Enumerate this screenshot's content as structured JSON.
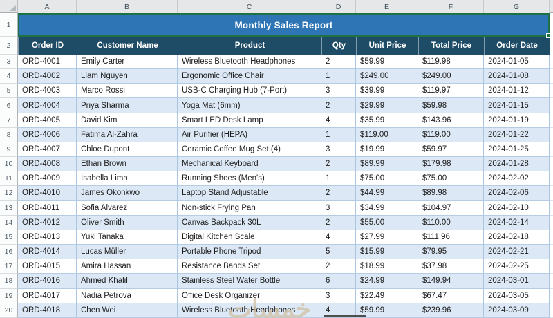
{
  "title": "Monthly Sales Report",
  "column_letters": [
    "A",
    "B",
    "C",
    "D",
    "E",
    "F",
    "G"
  ],
  "row_numbers": [
    "1",
    "2"
  ],
  "table": {
    "headers": [
      "Order ID",
      "Customer Name",
      "Product",
      "Qty",
      "Unit Price",
      "Total Price",
      "Order Date"
    ],
    "rows": [
      {
        "row_num": "3",
        "order_id": "ORD-4001",
        "customer": "Emily Carter",
        "product": "Wireless Bluetooth Headphones",
        "qty": "2",
        "unit_price": "$59.99",
        "total_price": "$119.98",
        "order_date": "2024-01-05"
      },
      {
        "row_num": "4",
        "order_id": "ORD-4002",
        "customer": "Liam Nguyen",
        "product": "Ergonomic Office Chair",
        "qty": "1",
        "unit_price": "$249.00",
        "total_price": "$249.00",
        "order_date": "2024-01-08"
      },
      {
        "row_num": "5",
        "order_id": "ORD-4003",
        "customer": "Marco Rossi",
        "product": "USB-C Charging Hub (7-Port)",
        "qty": "3",
        "unit_price": "$39.99",
        "total_price": "$119.97",
        "order_date": "2024-01-12"
      },
      {
        "row_num": "6",
        "order_id": "ORD-4004",
        "customer": "Priya Sharma",
        "product": "Yoga Mat (6mm)",
        "qty": "2",
        "unit_price": "$29.99",
        "total_price": "$59.98",
        "order_date": "2024-01-15"
      },
      {
        "row_num": "7",
        "order_id": "ORD-4005",
        "customer": "David Kim",
        "product": "Smart LED Desk Lamp",
        "qty": "4",
        "unit_price": "$35.99",
        "total_price": "$143.96",
        "order_date": "2024-01-19"
      },
      {
        "row_num": "8",
        "order_id": "ORD-4006",
        "customer": "Fatima Al-Zahra",
        "product": "Air Purifier (HEPA)",
        "qty": "1",
        "unit_price": "$119.00",
        "total_price": "$119.00",
        "order_date": "2024-01-22"
      },
      {
        "row_num": "9",
        "order_id": "ORD-4007",
        "customer": "Chloe Dupont",
        "product": "Ceramic Coffee Mug Set (4)",
        "qty": "3",
        "unit_price": "$19.99",
        "total_price": "$59.97",
        "order_date": "2024-01-25"
      },
      {
        "row_num": "10",
        "order_id": "ORD-4008",
        "customer": "Ethan Brown",
        "product": "Mechanical Keyboard",
        "qty": "2",
        "unit_price": "$89.99",
        "total_price": "$179.98",
        "order_date": "2024-01-28"
      },
      {
        "row_num": "11",
        "order_id": "ORD-4009",
        "customer": "Isabella Lima",
        "product": "Running Shoes (Men's)",
        "qty": "1",
        "unit_price": "$75.00",
        "total_price": "$75.00",
        "order_date": "2024-02-02"
      },
      {
        "row_num": "12",
        "order_id": "ORD-4010",
        "customer": "James Okonkwo",
        "product": "Laptop Stand Adjustable",
        "qty": "2",
        "unit_price": "$44.99",
        "total_price": "$89.98",
        "order_date": "2024-02-06"
      },
      {
        "row_num": "13",
        "order_id": "ORD-4011",
        "customer": "Sofia Alvarez",
        "product": "Non-stick Frying Pan",
        "qty": "3",
        "unit_price": "$34.99",
        "total_price": "$104.97",
        "order_date": "2024-02-10"
      },
      {
        "row_num": "14",
        "order_id": "ORD-4012",
        "customer": "Oliver Smith",
        "product": "Canvas Backpack 30L",
        "qty": "2",
        "unit_price": "$55.00",
        "total_price": "$110.00",
        "order_date": "2024-02-14"
      },
      {
        "row_num": "15",
        "order_id": "ORD-4013",
        "customer": "Yuki Tanaka",
        "product": "Digital Kitchen Scale",
        "qty": "4",
        "unit_price": "$27.99",
        "total_price": "$111.96",
        "order_date": "2024-02-18"
      },
      {
        "row_num": "16",
        "order_id": "ORD-4014",
        "customer": "Lucas Müller",
        "product": "Portable Phone Tripod",
        "qty": "5",
        "unit_price": "$15.99",
        "total_price": "$79.95",
        "order_date": "2024-02-21"
      },
      {
        "row_num": "17",
        "order_id": "ORD-4015",
        "customer": "Amira Hassan",
        "product": "Resistance Bands Set",
        "qty": "2",
        "unit_price": "$18.99",
        "total_price": "$37.98",
        "order_date": "2024-02-25"
      },
      {
        "row_num": "18",
        "order_id": "ORD-4016",
        "customer": "Ahmed Khalil",
        "product": "Stainless Steel Water Bottle",
        "qty": "6",
        "unit_price": "$24.99",
        "total_price": "$149.94",
        "order_date": "2024-03-01"
      },
      {
        "row_num": "19",
        "order_id": "ORD-4017",
        "customer": "Nadia Petrova",
        "product": "Office Desk Organizer",
        "qty": "3",
        "unit_price": "$22.49",
        "total_price": "$67.47",
        "order_date": "2024-03-05"
      },
      {
        "row_num": "20",
        "order_id": "ORD-4018",
        "customer": "Chen Wei",
        "product": "Wireless Bluetooth Headphones",
        "qty": "4",
        "unit_price": "$59.99",
        "total_price": "$239.96",
        "order_date": "2024-03-09"
      }
    ]
  },
  "watermark_text": "خمسات",
  "colors": {
    "title_bg": "#2E75B6",
    "header_bg": "#1E4C66",
    "band_bg": "#DCE8F5",
    "selection_green": "#1E7145",
    "gridline": "#ABC6E0",
    "column_strip_bg": "#E5E7E8",
    "watermark": "#D2C3A8"
  }
}
